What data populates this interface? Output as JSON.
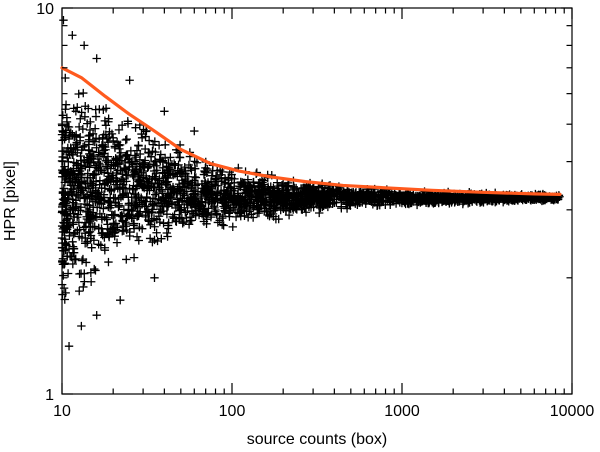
{
  "chart_data": {
    "type": "scatter",
    "title": "",
    "xlabel": "source counts (box)",
    "ylabel": "HPR [pixel]",
    "xscale": "log",
    "yscale": "log",
    "xlim": [
      10,
      10000
    ],
    "ylim": [
      1,
      10
    ],
    "x_tick_labels": [
      "10",
      "100",
      "1000",
      "10000"
    ],
    "y_tick_labels": [
      "1",
      "10"
    ],
    "marker": "plus",
    "marker_color": "#000000",
    "grid": false,
    "series": [
      {
        "kind": "points",
        "marker": "plus",
        "color": "#000000",
        "envelope": [
          {
            "x": 10,
            "y_low": 1.3,
            "y_high": 8.0
          },
          {
            "x": 12,
            "y_low": 1.45,
            "y_high": 7.4
          },
          {
            "x": 15,
            "y_low": 1.7,
            "y_high": 7.0
          },
          {
            "x": 20,
            "y_low": 1.9,
            "y_high": 6.2
          },
          {
            "x": 30,
            "y_low": 2.1,
            "y_high": 5.5
          },
          {
            "x": 50,
            "y_low": 2.4,
            "y_high": 4.6
          },
          {
            "x": 100,
            "y_low": 2.6,
            "y_high": 4.0
          },
          {
            "x": 200,
            "y_low": 2.8,
            "y_high": 3.7
          },
          {
            "x": 500,
            "y_low": 3.0,
            "y_high": 3.5
          },
          {
            "x": 1000,
            "y_low": 3.05,
            "y_high": 3.4
          },
          {
            "x": 3000,
            "y_low": 3.1,
            "y_high": 3.35
          },
          {
            "x": 8500,
            "y_low": 3.15,
            "y_high": 3.3
          }
        ],
        "outliers": [
          {
            "x": 10.2,
            "y": 9.3
          },
          {
            "x": 11.5,
            "y": 8.5
          },
          {
            "x": 13.5,
            "y": 8.0
          },
          {
            "x": 16,
            "y": 7.4
          },
          {
            "x": 25,
            "y": 6.5
          },
          {
            "x": 40,
            "y": 5.4
          },
          {
            "x": 60,
            "y": 4.8
          },
          {
            "x": 11,
            "y": 1.33
          },
          {
            "x": 13,
            "y": 1.5
          },
          {
            "x": 16,
            "y": 1.6
          },
          {
            "x": 22,
            "y": 1.75
          },
          {
            "x": 35,
            "y": 2.0
          }
        ]
      },
      {
        "kind": "line",
        "color": "#ff5a1e",
        "x": [
          10,
          13,
          18,
          25,
          35,
          50,
          75,
          110,
          170,
          270,
          450,
          800,
          1500,
          3000,
          6000,
          8500
        ],
        "y": [
          7.0,
          6.6,
          5.9,
          5.3,
          4.8,
          4.3,
          3.95,
          3.78,
          3.65,
          3.55,
          3.47,
          3.42,
          3.37,
          3.33,
          3.3,
          3.29
        ]
      }
    ]
  }
}
